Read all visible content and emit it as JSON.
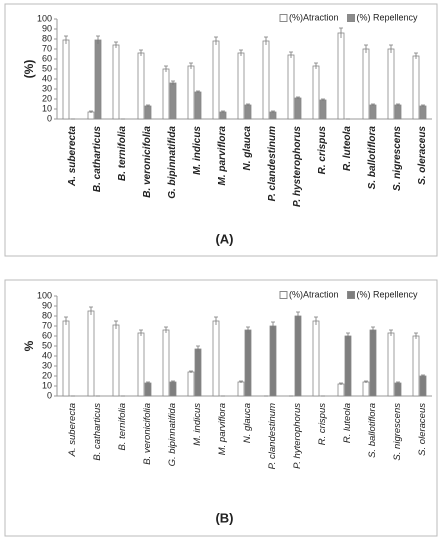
{
  "chart_data": [
    {
      "type": "bar",
      "panel_label": "(A)",
      "ylabel": "(%)",
      "categories": [
        "A. suberecta",
        "B. catharticus",
        "B. ternifolia",
        "B. veronicifolia",
        "G. bipinnatifida",
        "M. indicus",
        "M. parviflora",
        "N. glauca",
        "P. clandestinum",
        "P. hysterophorus",
        "R. crispus",
        "R. luteola",
        "S. ballotiflora",
        "S. nigrescens",
        "S. oleraceus"
      ],
      "series": [
        {
          "name": "(%)Atraction",
          "color": "#ffffff",
          "values": [
            79,
            7,
            74,
            66,
            50,
            53,
            78,
            66,
            78,
            64,
            53,
            86,
            70,
            70,
            63
          ],
          "errors": [
            4,
            1,
            3,
            3,
            3,
            3,
            4,
            3,
            4,
            3,
            3,
            5,
            4,
            4,
            3
          ]
        },
        {
          "name": "(%) Repellency",
          "color": "#8c8c8c",
          "values": [
            0,
            79,
            0,
            13,
            36,
            27,
            7,
            14,
            7,
            21,
            19,
            0,
            14,
            14,
            13
          ],
          "errors": [
            0,
            4,
            0,
            1,
            2,
            1,
            1,
            1,
            1,
            1,
            1,
            0,
            1,
            1,
            1
          ]
        }
      ],
      "ylim": [
        0,
        100
      ],
      "yticks": [
        0,
        10,
        20,
        30,
        40,
        50,
        60,
        70,
        80,
        90,
        100
      ],
      "legend": "top-right"
    },
    {
      "type": "bar",
      "panel_label": "(B)",
      "ylabel": "%",
      "categories": [
        "A. suberecta",
        "B. catharticus",
        "B. ternifolia",
        "B. veronicifolia",
        "G. bipinnatifida",
        "M. indicus",
        "M. parviflora",
        "N. glauca",
        "P. clandestinum",
        "P. hyterophorus",
        "R. crispus",
        "R. luteola",
        "S. ballotiflora",
        "S. nigrescens",
        "S. oleraceus"
      ],
      "series": [
        {
          "name": "(%)Atraction",
          "color": "#ffffff",
          "values": [
            75,
            85,
            71,
            63,
            66,
            24,
            75,
            14,
            0,
            0,
            75,
            12,
            14,
            63,
            60
          ],
          "errors": [
            4,
            4,
            4,
            3,
            3,
            1,
            4,
            1,
            0,
            0,
            4,
            1,
            1,
            3,
            3
          ]
        },
        {
          "name": "(%) Repellency",
          "color": "#7f7f7f",
          "values": [
            0,
            0,
            0,
            13,
            14,
            47,
            0,
            66,
            70,
            80,
            0,
            60,
            66,
            13,
            20
          ],
          "errors": [
            0,
            0,
            0,
            1,
            1,
            3,
            0,
            3,
            4,
            4,
            0,
            3,
            3,
            1,
            1
          ]
        }
      ],
      "ylim": [
        0,
        100
      ],
      "yticks": [
        0,
        10,
        20,
        30,
        40,
        50,
        60,
        70,
        80,
        90,
        100
      ],
      "legend": "top-right"
    }
  ]
}
